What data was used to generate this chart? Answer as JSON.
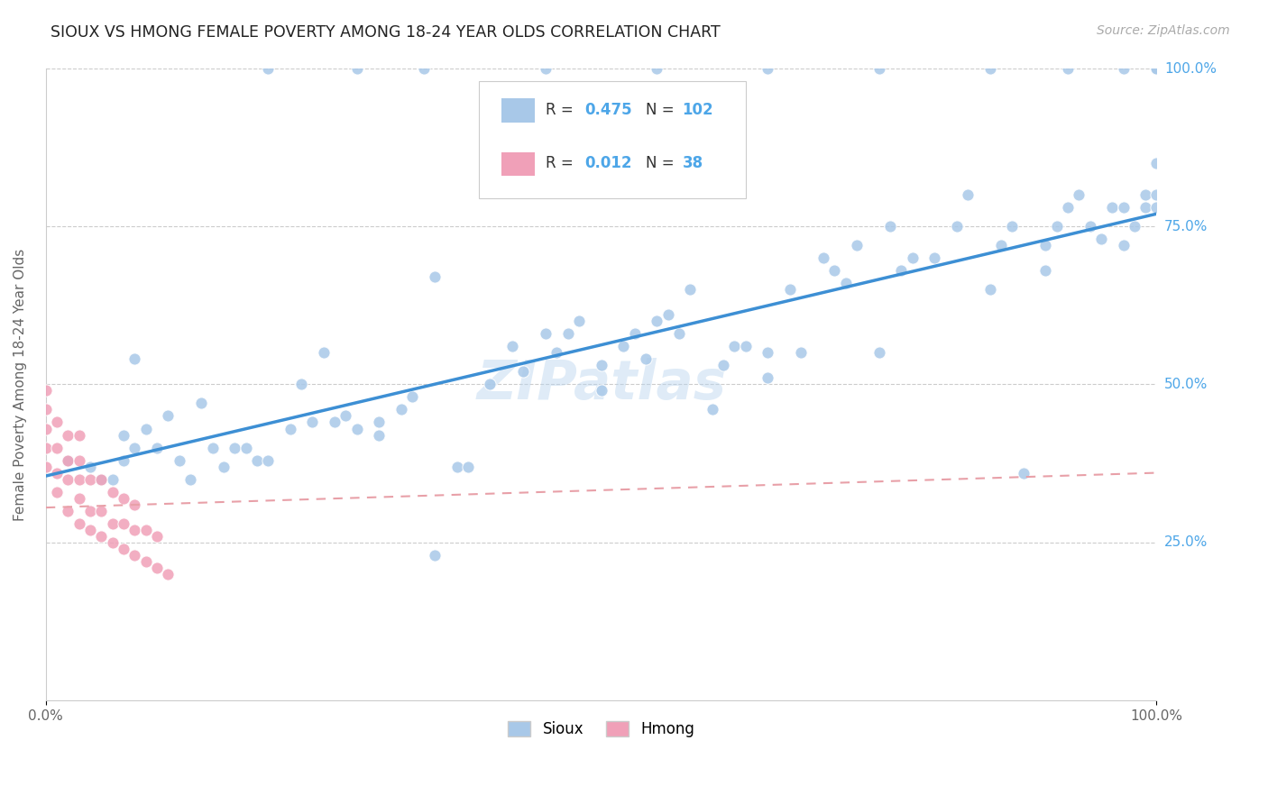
{
  "title": "SIOUX VS HMONG FEMALE POVERTY AMONG 18-24 YEAR OLDS CORRELATION CHART",
  "source_text": "Source: ZipAtlas.com",
  "ylabel": "Female Poverty Among 18-24 Year Olds",
  "xlim": [
    0.0,
    1.0
  ],
  "ylim": [
    0.0,
    1.0
  ],
  "ytick_vals": [
    0.25,
    0.5,
    0.75,
    1.0
  ],
  "ytick_labels": [
    "25.0%",
    "50.0%",
    "75.0%",
    "100.0%"
  ],
  "watermark": "ZIPatlas",
  "sioux_color": "#a8c8e8",
  "hmong_color": "#f0a0b8",
  "sioux_R": 0.475,
  "sioux_N": 102,
  "hmong_R": 0.012,
  "hmong_N": 38,
  "sioux_line_color": "#3d8fd4",
  "hmong_line_color": "#e8a0a8",
  "background_color": "#ffffff",
  "sioux_line_y0": 0.355,
  "sioux_line_y1": 0.77,
  "hmong_line_y0": 0.305,
  "hmong_line_y1": 0.36,
  "sioux_x": [
    0.02,
    0.04,
    0.05,
    0.06,
    0.07,
    0.07,
    0.08,
    0.09,
    0.1,
    0.11,
    0.12,
    0.13,
    0.14,
    0.15,
    0.16,
    0.17,
    0.18,
    0.19,
    0.2,
    0.22,
    0.23,
    0.24,
    0.25,
    0.26,
    0.27,
    0.28,
    0.3,
    0.3,
    0.32,
    0.33,
    0.35,
    0.37,
    0.38,
    0.4,
    0.42,
    0.43,
    0.45,
    0.46,
    0.47,
    0.48,
    0.5,
    0.5,
    0.52,
    0.53,
    0.54,
    0.55,
    0.56,
    0.57,
    0.58,
    0.6,
    0.61,
    0.62,
    0.63,
    0.65,
    0.65,
    0.67,
    0.68,
    0.7,
    0.71,
    0.72,
    0.73,
    0.75,
    0.76,
    0.77,
    0.78,
    0.8,
    0.82,
    0.83,
    0.85,
    0.86,
    0.87,
    0.88,
    0.9,
    0.9,
    0.91,
    0.92,
    0.93,
    0.94,
    0.95,
    0.96,
    0.97,
    0.97,
    0.98,
    0.99,
    0.99,
    1.0,
    1.0,
    1.0,
    1.0,
    1.0,
    0.2,
    0.28,
    0.34,
    0.45,
    0.55,
    0.65,
    0.75,
    0.85,
    0.92,
    0.97,
    0.08,
    0.35
  ],
  "sioux_y": [
    0.38,
    0.37,
    0.35,
    0.35,
    0.38,
    0.42,
    0.4,
    0.43,
    0.4,
    0.45,
    0.38,
    0.35,
    0.47,
    0.4,
    0.37,
    0.4,
    0.4,
    0.38,
    0.38,
    0.43,
    0.5,
    0.44,
    0.55,
    0.44,
    0.45,
    0.43,
    0.42,
    0.44,
    0.46,
    0.48,
    0.23,
    0.37,
    0.37,
    0.5,
    0.56,
    0.52,
    0.58,
    0.55,
    0.58,
    0.6,
    0.49,
    0.53,
    0.56,
    0.58,
    0.54,
    0.6,
    0.61,
    0.58,
    0.65,
    0.46,
    0.53,
    0.56,
    0.56,
    0.51,
    0.55,
    0.65,
    0.55,
    0.7,
    0.68,
    0.66,
    0.72,
    0.55,
    0.75,
    0.68,
    0.7,
    0.7,
    0.75,
    0.8,
    0.65,
    0.72,
    0.75,
    0.36,
    0.68,
    0.72,
    0.75,
    0.78,
    0.8,
    0.75,
    0.73,
    0.78,
    0.78,
    0.72,
    0.75,
    0.78,
    0.8,
    0.78,
    0.8,
    0.85,
    1.0,
    1.0,
    1.0,
    1.0,
    1.0,
    1.0,
    1.0,
    1.0,
    1.0,
    1.0,
    1.0,
    1.0,
    0.54,
    0.67
  ],
  "hmong_x": [
    0.0,
    0.0,
    0.0,
    0.0,
    0.0,
    0.01,
    0.01,
    0.01,
    0.01,
    0.02,
    0.02,
    0.02,
    0.02,
    0.03,
    0.03,
    0.03,
    0.03,
    0.03,
    0.04,
    0.04,
    0.04,
    0.05,
    0.05,
    0.05,
    0.06,
    0.06,
    0.06,
    0.07,
    0.07,
    0.07,
    0.08,
    0.08,
    0.08,
    0.09,
    0.09,
    0.1,
    0.1,
    0.11
  ],
  "hmong_y": [
    0.37,
    0.4,
    0.43,
    0.46,
    0.49,
    0.33,
    0.36,
    0.4,
    0.44,
    0.3,
    0.35,
    0.38,
    0.42,
    0.28,
    0.32,
    0.35,
    0.38,
    0.42,
    0.27,
    0.3,
    0.35,
    0.26,
    0.3,
    0.35,
    0.25,
    0.28,
    0.33,
    0.24,
    0.28,
    0.32,
    0.23,
    0.27,
    0.31,
    0.22,
    0.27,
    0.21,
    0.26,
    0.2
  ]
}
